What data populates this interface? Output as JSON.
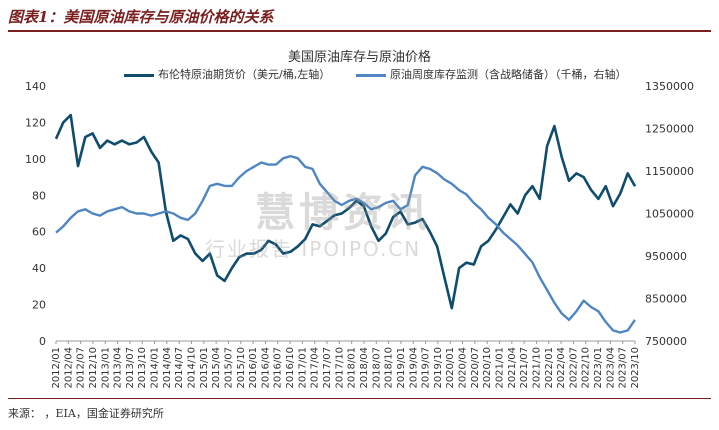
{
  "header": {
    "figure_title": "图表1：美国原油库存与原油价格的关系",
    "source": "来源：      ，EIA，国金证券研究所"
  },
  "watermark": {
    "main": "慧博资讯",
    "sub": "行业报告 IPOIPO.CN"
  },
  "chart_data": {
    "type": "line",
    "title": "美国原油库存与原油价格",
    "colors": {
      "brent": "#0f4c6e",
      "inventory": "#4f86c2"
    },
    "legend_placement": "top",
    "grid": false,
    "x_ticks": [
      "2012/01",
      "2012/04",
      "2012/07",
      "2012/10",
      "2013/01",
      "2013/04",
      "2013/07",
      "2013/10",
      "2014/01",
      "2014/04",
      "2014/07",
      "2014/10",
      "2015/01",
      "2015/04",
      "2015/07",
      "2015/10",
      "2016/01",
      "2016/04",
      "2016/07",
      "2016/10",
      "2017/01",
      "2017/04",
      "2017/07",
      "2017/10",
      "2018/01",
      "2018/04",
      "2018/07",
      "2018/10",
      "2019/01",
      "2019/04",
      "2019/07",
      "2019/10",
      "2020/01",
      "2020/04",
      "2020/07",
      "2020/10",
      "2021/01",
      "2021/04",
      "2021/07",
      "2021/10",
      "2022/01",
      "2022/04",
      "2022/07",
      "2022/10",
      "2023/01",
      "2023/04",
      "2023/07",
      "2023/10"
    ],
    "y_left": {
      "min": 0,
      "max": 140,
      "ticks": [
        0,
        20,
        40,
        60,
        80,
        100,
        120,
        140
      ]
    },
    "y_right": {
      "min": 750000,
      "max": 1350000,
      "ticks": [
        750000,
        850000,
        950000,
        1050000,
        1150000,
        1250000,
        1350000
      ]
    },
    "series": [
      {
        "name": "布伦特原油期货价（美元/桶,左轴）",
        "axis": "left",
        "values": [
          111,
          120,
          124,
          96,
          112,
          114,
          106,
          110,
          108,
          110,
          108,
          109,
          112,
          104,
          98,
          71,
          55,
          58,
          56,
          48,
          44,
          48,
          36,
          33,
          40,
          46,
          48,
          48,
          50,
          55,
          53,
          48,
          49,
          52,
          56,
          64,
          63,
          66,
          69,
          70,
          73,
          77,
          74,
          63,
          55,
          59,
          68,
          71,
          64,
          65,
          67,
          60,
          52,
          35,
          18,
          40,
          43,
          42,
          52,
          55,
          61,
          68,
          75,
          70,
          80,
          85,
          78,
          107,
          118,
          101,
          88,
          92,
          90,
          83,
          78,
          85,
          74,
          81,
          92,
          85
        ],
        "x_start": "2012/01",
        "x_end": "2023/10"
      },
      {
        "name": "原油周度库存监测（含战略储备）（千桶，右轴）",
        "axis": "right",
        "values": [
          1005000,
          1020000,
          1040000,
          1055000,
          1060000,
          1050000,
          1045000,
          1055000,
          1060000,
          1065000,
          1055000,
          1050000,
          1050000,
          1045000,
          1050000,
          1055000,
          1050000,
          1040000,
          1035000,
          1050000,
          1080000,
          1115000,
          1120000,
          1115000,
          1115000,
          1135000,
          1150000,
          1160000,
          1170000,
          1165000,
          1165000,
          1180000,
          1185000,
          1180000,
          1160000,
          1155000,
          1120000,
          1100000,
          1080000,
          1070000,
          1080000,
          1085000,
          1075000,
          1060000,
          1065000,
          1075000,
          1080000,
          1060000,
          1070000,
          1140000,
          1160000,
          1155000,
          1145000,
          1130000,
          1120000,
          1105000,
          1095000,
          1075000,
          1060000,
          1040000,
          1025000,
          1005000,
          990000,
          975000,
          955000,
          935000,
          900000,
          870000,
          840000,
          815000,
          800000,
          820000,
          845000,
          830000,
          820000,
          795000,
          775000,
          770000,
          775000,
          800000
        ],
        "x_start": "2012/01",
        "x_end": "2023/10"
      }
    ]
  }
}
